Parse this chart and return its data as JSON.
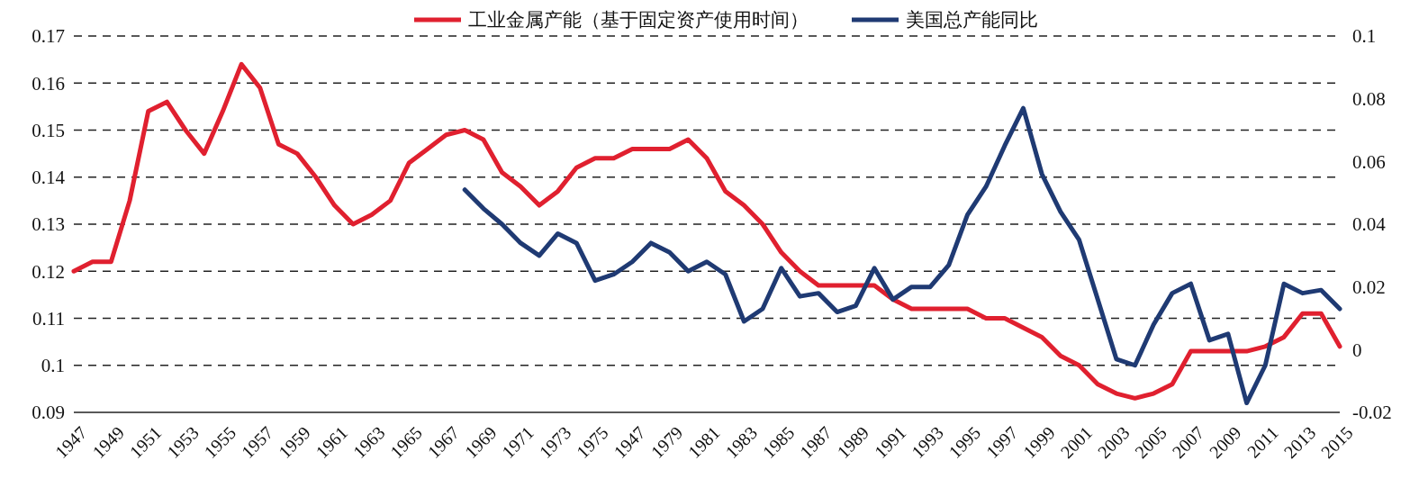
{
  "chart_data": {
    "type": "line",
    "categories": [
      "1947",
      null,
      "1949",
      null,
      "1951",
      null,
      "1953",
      null,
      "1955",
      null,
      "1957",
      null,
      "1959",
      null,
      "1961",
      null,
      "1963",
      null,
      "1965",
      null,
      "1967",
      null,
      "1969",
      null,
      "1971",
      null,
      "1973",
      null,
      "1975",
      null,
      "1947",
      null,
      "1979",
      null,
      "1981",
      null,
      "1983",
      null,
      "1985",
      null,
      "1987",
      null,
      "1989",
      null,
      "1991",
      null,
      "1993",
      null,
      "1995",
      null,
      "1997",
      null,
      "1999",
      null,
      "2001",
      null,
      "2003",
      null,
      "2005",
      null,
      "2007",
      null,
      "2009",
      null,
      "2011",
      null,
      "2013",
      null,
      "2015"
    ],
    "series": [
      {
        "name": "工业金属产能（基于固定资产使用时间）",
        "color": "#e0202f",
        "values": [
          0.12,
          0.122,
          0.122,
          0.135,
          0.154,
          0.156,
          0.15,
          0.145,
          0.154,
          0.164,
          0.159,
          0.147,
          0.145,
          0.14,
          0.134,
          0.13,
          0.132,
          0.135,
          0.143,
          0.146,
          0.149,
          0.15,
          0.148,
          0.141,
          0.138,
          0.134,
          0.137,
          0.142,
          0.144,
          0.144,
          0.146,
          0.146,
          0.146,
          0.148,
          0.144,
          0.137,
          0.134,
          0.13,
          0.124,
          0.12,
          0.117,
          0.117,
          0.117,
          0.117,
          0.114,
          0.112,
          0.112,
          0.112,
          0.112,
          0.11,
          0.11,
          0.108,
          0.106,
          0.102,
          0.1,
          0.096,
          0.094,
          0.093,
          0.094,
          0.096,
          0.103,
          0.103,
          0.103,
          0.103,
          0.104,
          0.106,
          0.111,
          0.111,
          0.104
        ]
      },
      {
        "name": "美国总产能同比",
        "color": "#1f3a73",
        "axis": "y2",
        "values": [
          null,
          null,
          null,
          null,
          null,
          null,
          null,
          null,
          null,
          null,
          null,
          null,
          null,
          null,
          null,
          null,
          null,
          null,
          null,
          null,
          null,
          0.051,
          0.045,
          0.04,
          0.034,
          0.03,
          0.037,
          0.034,
          0.022,
          0.024,
          0.028,
          0.034,
          0.031,
          0.025,
          0.028,
          0.024,
          0.009,
          0.013,
          0.026,
          0.017,
          0.018,
          0.012,
          0.014,
          0.026,
          0.016,
          0.02,
          0.02,
          0.027,
          0.043,
          0.052,
          0.065,
          0.077,
          0.056,
          0.044,
          0.035,
          0.016,
          -0.003,
          -0.005,
          0.008,
          0.018,
          0.021,
          0.003,
          0.005,
          -0.017,
          -0.005,
          0.021,
          0.018,
          0.019,
          0.013
        ]
      }
    ],
    "ylim": [
      0.09,
      0.17
    ],
    "yticks": [
      {
        "value": 0.09,
        "label": "0.09"
      },
      {
        "value": 0.1,
        "label": "0.1"
      },
      {
        "value": 0.11,
        "label": "0.11"
      },
      {
        "value": 0.12,
        "label": "0.12"
      },
      {
        "value": 0.13,
        "label": "0.13"
      },
      {
        "value": 0.14,
        "label": "0.14"
      },
      {
        "value": 0.15,
        "label": "0.15"
      },
      {
        "value": 0.16,
        "label": "0.16"
      },
      {
        "value": 0.17,
        "label": "0.17"
      }
    ],
    "y2lim": [
      -0.02,
      0.1
    ],
    "y2ticks": [
      {
        "value": -0.02,
        "label": "-0.02"
      },
      {
        "value": 0,
        "label": "0"
      },
      {
        "value": 0.02,
        "label": "0.02"
      },
      {
        "value": 0.04,
        "label": "0.04"
      },
      {
        "value": 0.06,
        "label": "0.06"
      },
      {
        "value": 0.08,
        "label": "0.08"
      },
      {
        "value": 0.1,
        "label": "0.1"
      }
    ],
    "grid": "y",
    "legend": "top",
    "line_style": "solid",
    "marker": "none"
  }
}
